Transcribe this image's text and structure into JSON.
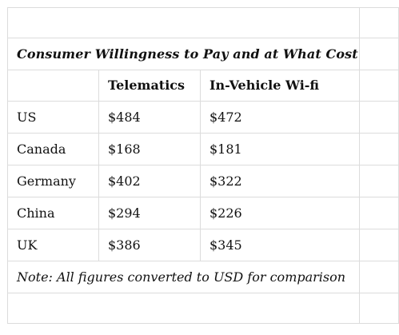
{
  "table": {
    "title": "Consumer Willingness to Pay and at What Cost?",
    "columns": [
      "",
      "Telematics",
      "In-Vehicle Wi-fi"
    ],
    "rows": [
      {
        "country": "US",
        "telematics": "$484",
        "wifi": "$472"
      },
      {
        "country": "Canada",
        "telematics": "$168",
        "wifi": "$181"
      },
      {
        "country": "Germany",
        "telematics": "$402",
        "wifi": "$322"
      },
      {
        "country": "China",
        "telematics": "$294",
        "wifi": "$226"
      },
      {
        "country": "UK",
        "telematics": "$386",
        "wifi": "$345"
      }
    ],
    "note": "Note: All figures converted to USD for comparison"
  }
}
